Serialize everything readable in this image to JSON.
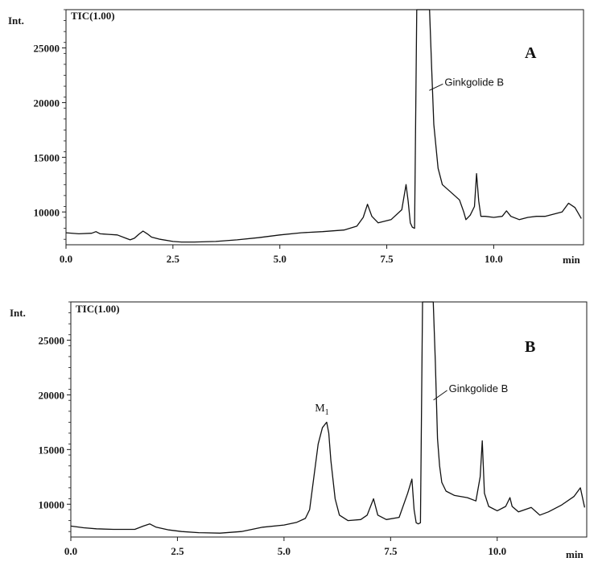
{
  "chart_data": [
    {
      "type": "line",
      "panel": "A",
      "trace_label": "TIC(1.00)",
      "ylabel": "Int.",
      "xlabel": "min",
      "xlim": [
        0,
        12.1
      ],
      "ylim": [
        7000,
        28500
      ],
      "xticks": [
        "0.0",
        "2.5",
        "5.0",
        "7.5",
        "10.0"
      ],
      "yticks": [
        "10000",
        "15000",
        "20000",
        "25000"
      ],
      "annotations": [
        {
          "text": "Ginkgolide B",
          "x": 8.55,
          "y": 22000
        }
      ],
      "series": [
        {
          "x": [
            0.0,
            0.3,
            0.6,
            0.7,
            0.8,
            1.0,
            1.2,
            1.4,
            1.5,
            1.6,
            1.7,
            1.8,
            1.9,
            2.0,
            2.2,
            2.5,
            2.7,
            3.0,
            3.5,
            4.0,
            4.5,
            5.0,
            5.5,
            6.0,
            6.5,
            6.8,
            6.95,
            7.05,
            7.15,
            7.3,
            7.6,
            7.85,
            7.95,
            8.0,
            8.05,
            8.1,
            8.15,
            8.2,
            8.25,
            8.3,
            8.35,
            8.4,
            8.45,
            8.5,
            8.55,
            8.6,
            8.7,
            8.8,
            9.0,
            9.2,
            9.3,
            9.35,
            9.45,
            9.55,
            9.6,
            9.65,
            9.7,
            9.8,
            10.0,
            10.2,
            10.3,
            10.4,
            10.6,
            10.8,
            11.0,
            11.2,
            11.4,
            11.6,
            11.75,
            11.9,
            12.05
          ],
          "y": [
            8100,
            8000,
            8050,
            8200,
            8000,
            7950,
            7900,
            7600,
            7450,
            7600,
            7950,
            8250,
            8000,
            7700,
            7500,
            7300,
            7250,
            7250,
            7300,
            7450,
            7650,
            7900,
            8100,
            8200,
            8350,
            8700,
            9500,
            10700,
            9600,
            9000,
            9300,
            10200,
            12500,
            11000,
            9000,
            8600,
            8500,
            28500,
            28500,
            28500,
            28500,
            28500,
            28500,
            28500,
            23000,
            18000,
            14000,
            12500,
            11800,
            11100,
            10000,
            9300,
            9700,
            10500,
            13500,
            11000,
            9600,
            9600,
            9500,
            9600,
            10100,
            9600,
            9300,
            9500,
            9600,
            9600,
            9800,
            10000,
            10800,
            10400,
            9400
          ]
        }
      ]
    },
    {
      "type": "line",
      "panel": "B",
      "trace_label": "TIC(1.00)",
      "ylabel": "Int.",
      "xlabel": "min",
      "xlim": [
        0,
        12.1
      ],
      "ylim": [
        7000,
        28500
      ],
      "xticks": [
        "0.0",
        "2.5",
        "5.0",
        "7.5",
        "10.0"
      ],
      "yticks": [
        "10000",
        "15000",
        "20000",
        "25000"
      ],
      "annotations": [
        {
          "text": "M",
          "sub": "1",
          "x": 5.95,
          "y": 19500
        },
        {
          "text": "Ginkgolide B",
          "x": 8.6,
          "y": 21000
        }
      ],
      "series": [
        {
          "x": [
            0.0,
            0.3,
            0.6,
            1.0,
            1.5,
            1.7,
            1.85,
            2.0,
            2.3,
            2.6,
            3.0,
            3.5,
            4.0,
            4.5,
            5.0,
            5.3,
            5.5,
            5.6,
            5.7,
            5.8,
            5.9,
            6.0,
            6.05,
            6.1,
            6.2,
            6.3,
            6.5,
            6.8,
            6.95,
            7.1,
            7.2,
            7.4,
            7.7,
            7.9,
            8.0,
            8.05,
            8.1,
            8.15,
            8.2,
            8.25,
            8.3,
            8.35,
            8.4,
            8.45,
            8.5,
            8.55,
            8.6,
            8.65,
            8.7,
            8.8,
            9.0,
            9.3,
            9.5,
            9.6,
            9.65,
            9.7,
            9.8,
            10.0,
            10.2,
            10.3,
            10.35,
            10.5,
            10.8,
            11.0,
            11.2,
            11.5,
            11.8,
            11.95,
            12.05
          ],
          "y": [
            8000,
            7850,
            7750,
            7700,
            7700,
            8000,
            8200,
            7900,
            7650,
            7500,
            7400,
            7350,
            7500,
            7900,
            8100,
            8350,
            8700,
            9500,
            12500,
            15500,
            17000,
            17500,
            16500,
            14000,
            10500,
            9000,
            8500,
            8600,
            9000,
            10500,
            9000,
            8600,
            8800,
            11000,
            12300,
            9500,
            8300,
            8200,
            8300,
            28500,
            28500,
            28500,
            28500,
            28500,
            28500,
            23000,
            16000,
            13500,
            12000,
            11200,
            10800,
            10600,
            10300,
            12500,
            15800,
            11000,
            9800,
            9400,
            9800,
            10600,
            9800,
            9300,
            9700,
            9000,
            9300,
            9900,
            10700,
            11500,
            9700
          ]
        }
      ]
    }
  ]
}
